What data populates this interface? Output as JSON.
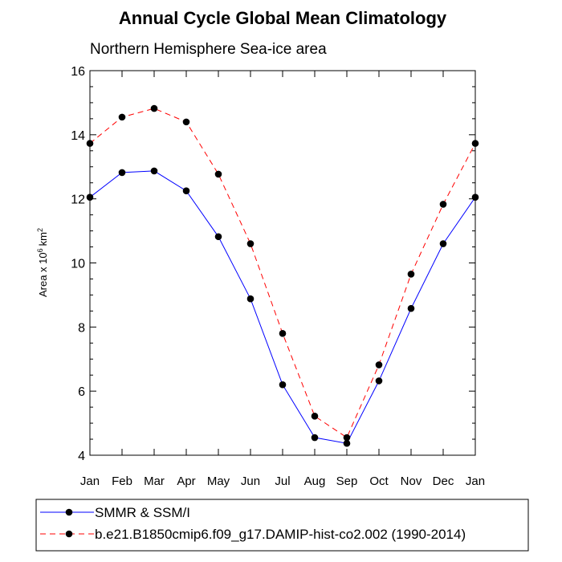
{
  "chart_data": {
    "type": "line",
    "title": "Annual Cycle Global Mean Climatology",
    "subtitle": "Northern Hemisphere Sea-ice area",
    "ylabel_main": "Area x 10",
    "ylabel_exp": "6",
    "ylabel_unit": "km",
    "ylabel_unit_exp": "2",
    "xlabel": "",
    "categories": [
      "Jan",
      "Feb",
      "Mar",
      "Apr",
      "May",
      "Jun",
      "Jul",
      "Aug",
      "Sep",
      "Oct",
      "Nov",
      "Dec",
      "Jan"
    ],
    "ylim": [
      4,
      16
    ],
    "yticks": [
      4,
      6,
      8,
      10,
      12,
      14,
      16
    ],
    "grid": false,
    "legend_position": "bottom",
    "series": [
      {
        "name": "SMMR & SSM/I",
        "color": "#0000ff",
        "dash": "solid",
        "marker": "filled-circle",
        "values": [
          12.05,
          12.82,
          12.87,
          12.25,
          10.82,
          8.88,
          6.2,
          4.55,
          4.37,
          6.32,
          8.58,
          10.6,
          12.05
        ]
      },
      {
        "name": "b.e21.B1850cmip6.f09_g17.DAMIP-hist-co2.002 (1990-2014)",
        "color": "#ff0000",
        "dash": "dashed",
        "marker": "filled-circle",
        "values": [
          13.73,
          14.55,
          14.82,
          14.4,
          12.77,
          10.6,
          7.8,
          5.22,
          4.55,
          6.82,
          9.65,
          11.83,
          13.73
        ]
      }
    ]
  }
}
